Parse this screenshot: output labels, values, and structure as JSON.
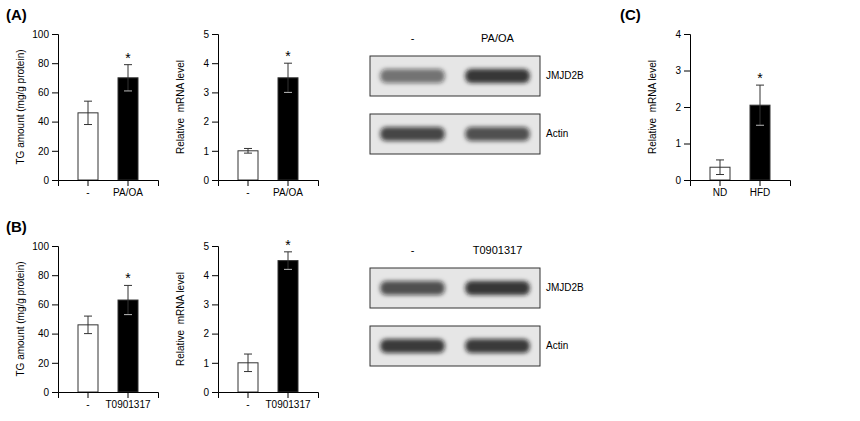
{
  "chart_data": [
    {
      "type": "bar",
      "title": "(A)",
      "categories": [
        "-",
        "PA/OA"
      ],
      "values": [
        46,
        70
      ],
      "errors": [
        8,
        9
      ],
      "colors": [
        "white",
        "black"
      ],
      "ylabel": "TG amount (mg/g protein)",
      "ylim": [
        0,
        100
      ],
      "yticks": [
        0,
        20,
        40,
        60,
        80,
        100
      ],
      "annotations": [
        {
          "text": "*",
          "x": "PA/OA"
        }
      ]
    },
    {
      "type": "bar",
      "categories": [
        "-",
        "PA/OA"
      ],
      "values": [
        1.0,
        3.5
      ],
      "errors": [
        0.08,
        0.5
      ],
      "colors": [
        "white",
        "black"
      ],
      "ylabel": "Relative  mRNA level",
      "ylim": [
        0,
        5
      ],
      "yticks": [
        0,
        1,
        2,
        3,
        4,
        5
      ],
      "annotations": [
        {
          "text": "*",
          "x": "PA/OA"
        }
      ]
    },
    {
      "type": "blot",
      "categories": [
        "-",
        "PA/OA"
      ],
      "series": [
        {
          "name": "JMJD2B",
          "values": [
            0.55,
            0.85
          ]
        },
        {
          "name": "Actin",
          "values": [
            0.75,
            0.7
          ]
        }
      ]
    },
    {
      "type": "bar",
      "title": "(B)",
      "categories": [
        "-",
        "T0901317"
      ],
      "values": [
        46,
        63
      ],
      "errors": [
        6,
        10
      ],
      "colors": [
        "white",
        "black"
      ],
      "ylabel": "TG amount (mg/g protein)",
      "ylim": [
        0,
        100
      ],
      "yticks": [
        0,
        20,
        40,
        60,
        80,
        100
      ],
      "annotations": [
        {
          "text": "*",
          "x": "T0901317"
        }
      ]
    },
    {
      "type": "bar",
      "categories": [
        "-",
        "T0901317"
      ],
      "values": [
        1.0,
        4.5
      ],
      "errors": [
        0.3,
        0.3
      ],
      "colors": [
        "white",
        "black"
      ],
      "ylabel": "Relative  mRNA level",
      "ylim": [
        0,
        5
      ],
      "yticks": [
        0,
        1,
        2,
        3,
        4,
        5
      ],
      "annotations": [
        {
          "text": "*",
          "x": "T0901317"
        }
      ]
    },
    {
      "type": "blot",
      "categories": [
        "-",
        "T0901317"
      ],
      "series": [
        {
          "name": "JMJD2B",
          "values": [
            0.7,
            0.85
          ]
        },
        {
          "name": "Actin",
          "values": [
            0.8,
            0.8
          ]
        }
      ]
    },
    {
      "type": "bar",
      "title": "(C)",
      "categories": [
        "ND",
        "HFD"
      ],
      "values": [
        0.35,
        2.05
      ],
      "errors": [
        0.2,
        0.55
      ],
      "colors": [
        "white",
        "black"
      ],
      "ylabel": "Relative  mRNA level",
      "ylim": [
        0,
        4
      ],
      "yticks": [
        0,
        1,
        2,
        3,
        4
      ],
      "annotations": [
        {
          "text": "*",
          "x": "HFD"
        }
      ]
    }
  ]
}
